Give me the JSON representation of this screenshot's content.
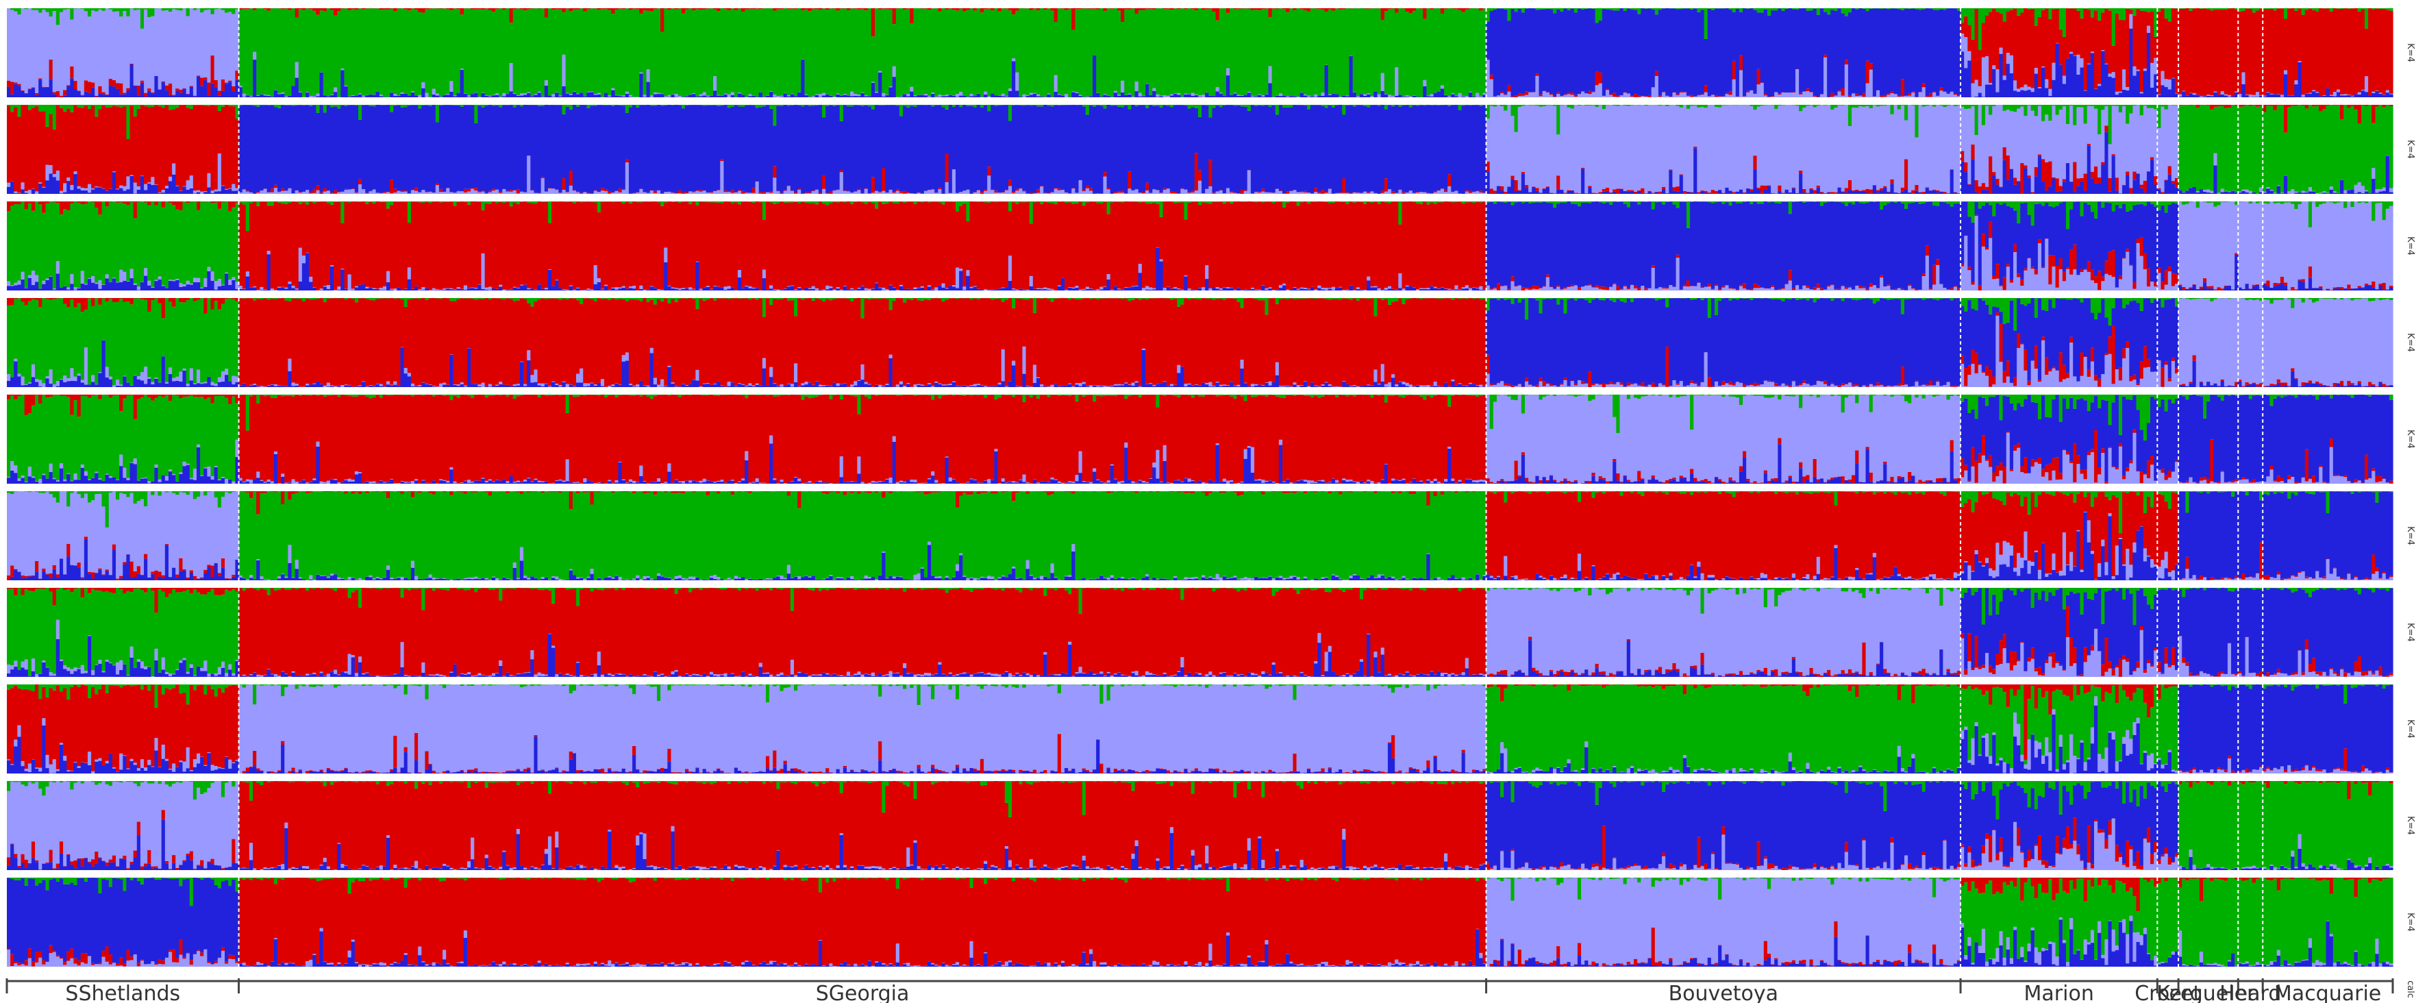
{
  "chart_data": {
    "type": "stacked-bar",
    "colors": [
      "#2222dd",
      "#9999ff",
      "#dd0000",
      "#00b000"
    ],
    "populations": [
      {
        "name": "SShetlands",
        "individuals": 66
      },
      {
        "name": "SGeorgia",
        "individuals": 355
      },
      {
        "name": "Bouvetoya",
        "individuals": 135
      },
      {
        "name": "Marion",
        "individuals": 56
      },
      {
        "name": "Crozet",
        "individuals": 6
      },
      {
        "name": "Kerguelen",
        "individuals": 17
      },
      {
        "name": "Heard",
        "individuals": 7
      },
      {
        "name": "Macquarie",
        "individuals": 37
      }
    ],
    "runs": [
      {
        "label": "K=4",
        "dominant": [
          1,
          3,
          0,
          2,
          2,
          2,
          2,
          2
        ],
        "mixing": [
          0.15,
          0.04,
          0.05,
          0.35,
          0.2,
          0.05,
          0.05,
          0.06
        ]
      },
      {
        "label": "K=4",
        "dominant": [
          2,
          0,
          1,
          1,
          1,
          3,
          3,
          3
        ],
        "mixing": [
          0.15,
          0.04,
          0.06,
          0.35,
          0.2,
          0.05,
          0.05,
          0.06
        ]
      },
      {
        "label": "K=4",
        "dominant": [
          3,
          2,
          0,
          0,
          0,
          1,
          1,
          1
        ],
        "mixing": [
          0.15,
          0.04,
          0.05,
          0.35,
          0.2,
          0.05,
          0.05,
          0.06
        ]
      },
      {
        "label": "K=4",
        "dominant": [
          3,
          2,
          0,
          0,
          0,
          1,
          1,
          1
        ],
        "mixing": [
          0.15,
          0.04,
          0.05,
          0.35,
          0.2,
          0.05,
          0.05,
          0.06
        ]
      },
      {
        "label": "K=4",
        "dominant": [
          3,
          2,
          1,
          0,
          0,
          0,
          0,
          0
        ],
        "mixing": [
          0.15,
          0.04,
          0.06,
          0.35,
          0.2,
          0.05,
          0.05,
          0.06
        ]
      },
      {
        "label": "K=4",
        "dominant": [
          1,
          3,
          2,
          2,
          2,
          0,
          0,
          0
        ],
        "mixing": [
          0.15,
          0.04,
          0.05,
          0.35,
          0.2,
          0.05,
          0.05,
          0.06
        ]
      },
      {
        "label": "K=4",
        "dominant": [
          3,
          2,
          1,
          0,
          0,
          0,
          0,
          0
        ],
        "mixing": [
          0.15,
          0.04,
          0.06,
          0.35,
          0.2,
          0.05,
          0.05,
          0.06
        ]
      },
      {
        "label": "K=4",
        "dominant": [
          2,
          1,
          3,
          3,
          3,
          0,
          0,
          0
        ],
        "mixing": [
          0.15,
          0.04,
          0.05,
          0.35,
          0.2,
          0.05,
          0.05,
          0.06
        ]
      },
      {
        "label": "K=4",
        "dominant": [
          1,
          2,
          0,
          0,
          0,
          3,
          3,
          3
        ],
        "mixing": [
          0.15,
          0.04,
          0.05,
          0.35,
          0.2,
          0.05,
          0.05,
          0.06
        ]
      },
      {
        "label": "K=4",
        "dominant": [
          0,
          2,
          1,
          3,
          3,
          3,
          3,
          3
        ],
        "mixing": [
          0.15,
          0.04,
          0.06,
          0.35,
          0.2,
          0.05,
          0.05,
          0.06
        ]
      }
    ],
    "axis_label": "calc"
  }
}
